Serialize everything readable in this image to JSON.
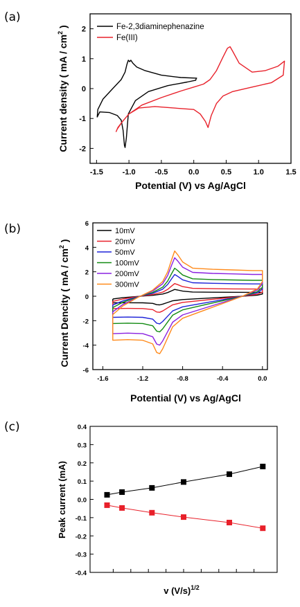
{
  "figure": {
    "panels": [
      {
        "panel_label": "(a)",
        "chart_index": 0
      },
      {
        "panel_label": "(b)",
        "chart_index": 1
      },
      {
        "panel_label": "(c)",
        "chart_index": 2
      }
    ]
  },
  "chart_data": [
    {
      "type": "line",
      "title": "",
      "xlabel": "Potential (V) vs Ag/AgCl",
      "ylabel": "Current density ( mA / cm",
      "ylabel_sup": "2",
      "ylabel_close": " )",
      "xlim": [
        -1.6,
        1.5
      ],
      "ylim": [
        -2.5,
        2.5
      ],
      "xticks": [
        -1.5,
        -1.0,
        -0.5,
        0.0,
        0.5,
        1.0,
        1.5
      ],
      "xtick_labels": [
        "-1.5",
        "-1.0",
        "-0.5",
        "0.0",
        "0.5",
        "1.0",
        "1.5"
      ],
      "yticks": [
        -2,
        -1,
        0,
        1,
        2
      ],
      "ytick_labels": [
        "-2",
        "-1",
        "0",
        "1",
        "2"
      ],
      "legend_position": "top-left",
      "series": [
        {
          "name": "Fe-2,3diaminephenazine",
          "color": "#000000",
          "x": [
            0.05,
            -0.2,
            -0.5,
            -0.75,
            -0.88,
            -0.94,
            -0.97,
            -0.99,
            -1.01,
            -1.03,
            -1.06,
            -1.12,
            -1.25,
            -1.4,
            -1.48,
            -1.49,
            -1.45,
            -1.3,
            -1.18,
            -1.12,
            -1.09,
            -1.07,
            -1.06,
            -1.04,
            -1.01,
            -0.9,
            -0.7,
            -0.4,
            -0.1,
            0.03,
            0.04
          ],
          "y": [
            0.35,
            0.37,
            0.45,
            0.6,
            0.72,
            0.85,
            0.95,
            0.9,
            0.95,
            0.82,
            0.55,
            0.3,
            0.0,
            -0.35,
            -0.7,
            -0.95,
            -0.78,
            -0.8,
            -0.9,
            -1.05,
            -1.4,
            -1.9,
            -1.97,
            -1.65,
            -0.85,
            -0.4,
            -0.1,
            0.1,
            0.22,
            0.28,
            0.35
          ]
        },
        {
          "name": "Fe(III)",
          "color": "#e8202a",
          "x": [
            -1.2,
            -1.18,
            -1.1,
            -1.0,
            -0.8,
            -0.5,
            -0.2,
            0.0,
            0.15,
            0.25,
            0.35,
            0.45,
            0.52,
            0.56,
            0.6,
            0.7,
            0.9,
            1.1,
            1.3,
            1.4,
            1.38,
            1.2,
            0.9,
            0.6,
            0.45,
            0.35,
            0.27,
            0.22,
            0.18,
            0.1,
            0.0,
            -0.3,
            -0.6,
            -0.85,
            -1.0,
            -1.1,
            -1.17,
            -1.2
          ],
          "y": [
            -1.45,
            -1.35,
            -1.1,
            -0.85,
            -0.55,
            -0.3,
            -0.08,
            0.05,
            0.15,
            0.3,
            0.6,
            1.05,
            1.35,
            1.4,
            1.25,
            0.85,
            0.55,
            0.6,
            0.75,
            0.92,
            0.45,
            0.2,
            0.05,
            -0.1,
            -0.25,
            -0.5,
            -0.9,
            -1.3,
            -1.1,
            -0.85,
            -0.7,
            -0.65,
            -0.6,
            -0.65,
            -0.85,
            -1.1,
            -1.3,
            -1.45
          ]
        }
      ]
    },
    {
      "type": "line",
      "title": "",
      "xlabel": "Potential (V) vs Ag/AgCl",
      "ylabel": "Current Dencity ( mA / cm",
      "ylabel_sup": "2",
      "ylabel_close": " )",
      "xlim": [
        -1.7,
        0.05
      ],
      "ylim": [
        -6,
        6
      ],
      "xticks": [
        -1.6,
        -1.2,
        -0.8,
        -0.4,
        0.0
      ],
      "xtick_labels": [
        "-1.6",
        "-1.2",
        "-0.8",
        "-0.4",
        "0.0"
      ],
      "yticks": [
        -6,
        -4,
        -2,
        0,
        2,
        4,
        6
      ],
      "ytick_labels": [
        "-6",
        "-4",
        "-2",
        "0",
        "2",
        "4",
        "6"
      ],
      "legend_position": "top-left",
      "series": [
        {
          "name": "10mV",
          "color": "#000000",
          "scale": 0.15
        },
        {
          "name": "20mV",
          "color": "#e8202a",
          "scale": 0.28
        },
        {
          "name": "50mV",
          "color": "#1d22d8",
          "scale": 0.48
        },
        {
          "name": "100mV",
          "color": "#128a12",
          "scale": 0.62
        },
        {
          "name": "200mV",
          "color": "#8a20e0",
          "scale": 0.85
        },
        {
          "name": "300mV",
          "color": "#ff8a1a",
          "scale": 1.0
        }
      ],
      "reference_curve": {
        "x": [
          -1.5,
          -1.4,
          -1.25,
          -1.1,
          -1.0,
          -0.95,
          -0.91,
          -0.88,
          -0.85,
          -0.8,
          -0.7,
          -0.5,
          -0.3,
          -0.1,
          0.0,
          0.0,
          -0.05,
          -0.2,
          -0.4,
          -0.6,
          -0.8,
          -0.9,
          -0.95,
          -1.0,
          -1.03,
          -1.06,
          -1.1,
          -1.2,
          -1.35,
          -1.5,
          -1.5
        ],
        "y": [
          -1.5,
          -0.8,
          -0.1,
          0.5,
          1.2,
          2.0,
          3.0,
          3.7,
          3.4,
          2.8,
          2.3,
          2.2,
          2.15,
          2.1,
          2.1,
          1.2,
          0.6,
          0.0,
          -0.6,
          -1.2,
          -1.8,
          -2.5,
          -3.4,
          -4.3,
          -4.7,
          -4.6,
          -3.9,
          -3.6,
          -3.55,
          -3.6,
          -1.5
        ]
      }
    },
    {
      "type": "scatter",
      "title": "",
      "xlabel": "v (V/s)",
      "xlabel_sup": "1/2",
      "ylabel": "Peak current (mA)",
      "xlim": [
        0.0,
        10.0
      ],
      "ylim": [
        -0.4,
        0.4
      ],
      "yticks": [
        -0.4,
        -0.3,
        -0.2,
        -0.1,
        0.0,
        0.1,
        0.2,
        0.3,
        0.4
      ],
      "ytick_labels": [
        "-0.4",
        "-0.3",
        "-0.2",
        "-0.1",
        "0.0",
        "0.1",
        "0.2",
        "0.3",
        "0.4"
      ],
      "xticks": [
        1.0,
        2.0,
        3.0,
        4.0,
        5.0,
        6.0,
        7.0,
        8.0,
        9.0
      ],
      "series": [
        {
          "color": "#000000",
          "x": [
            0.65,
            1.5,
            3.2,
            5.0,
            7.6,
            9.5
          ],
          "y": [
            0.025,
            0.04,
            0.063,
            0.095,
            0.138,
            0.18
          ]
        },
        {
          "color": "#e8202a",
          "x": [
            0.65,
            1.5,
            3.2,
            5.0,
            7.6,
            9.5
          ],
          "y": [
            -0.032,
            -0.047,
            -0.073,
            -0.097,
            -0.127,
            -0.158
          ]
        }
      ]
    }
  ]
}
